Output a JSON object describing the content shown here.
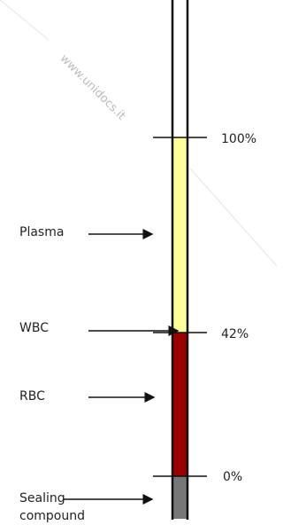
{
  "watermark": "www.unidocs.it",
  "scale": [
    {
      "label": "100%"
    },
    {
      "label": "42%"
    },
    {
      "label": "0%"
    }
  ],
  "components": [
    {
      "label": "Plasma"
    },
    {
      "label": "WBC"
    },
    {
      "label": "RBC"
    },
    {
      "lines": [
        "Sealing",
        "compound"
      ]
    }
  ]
}
